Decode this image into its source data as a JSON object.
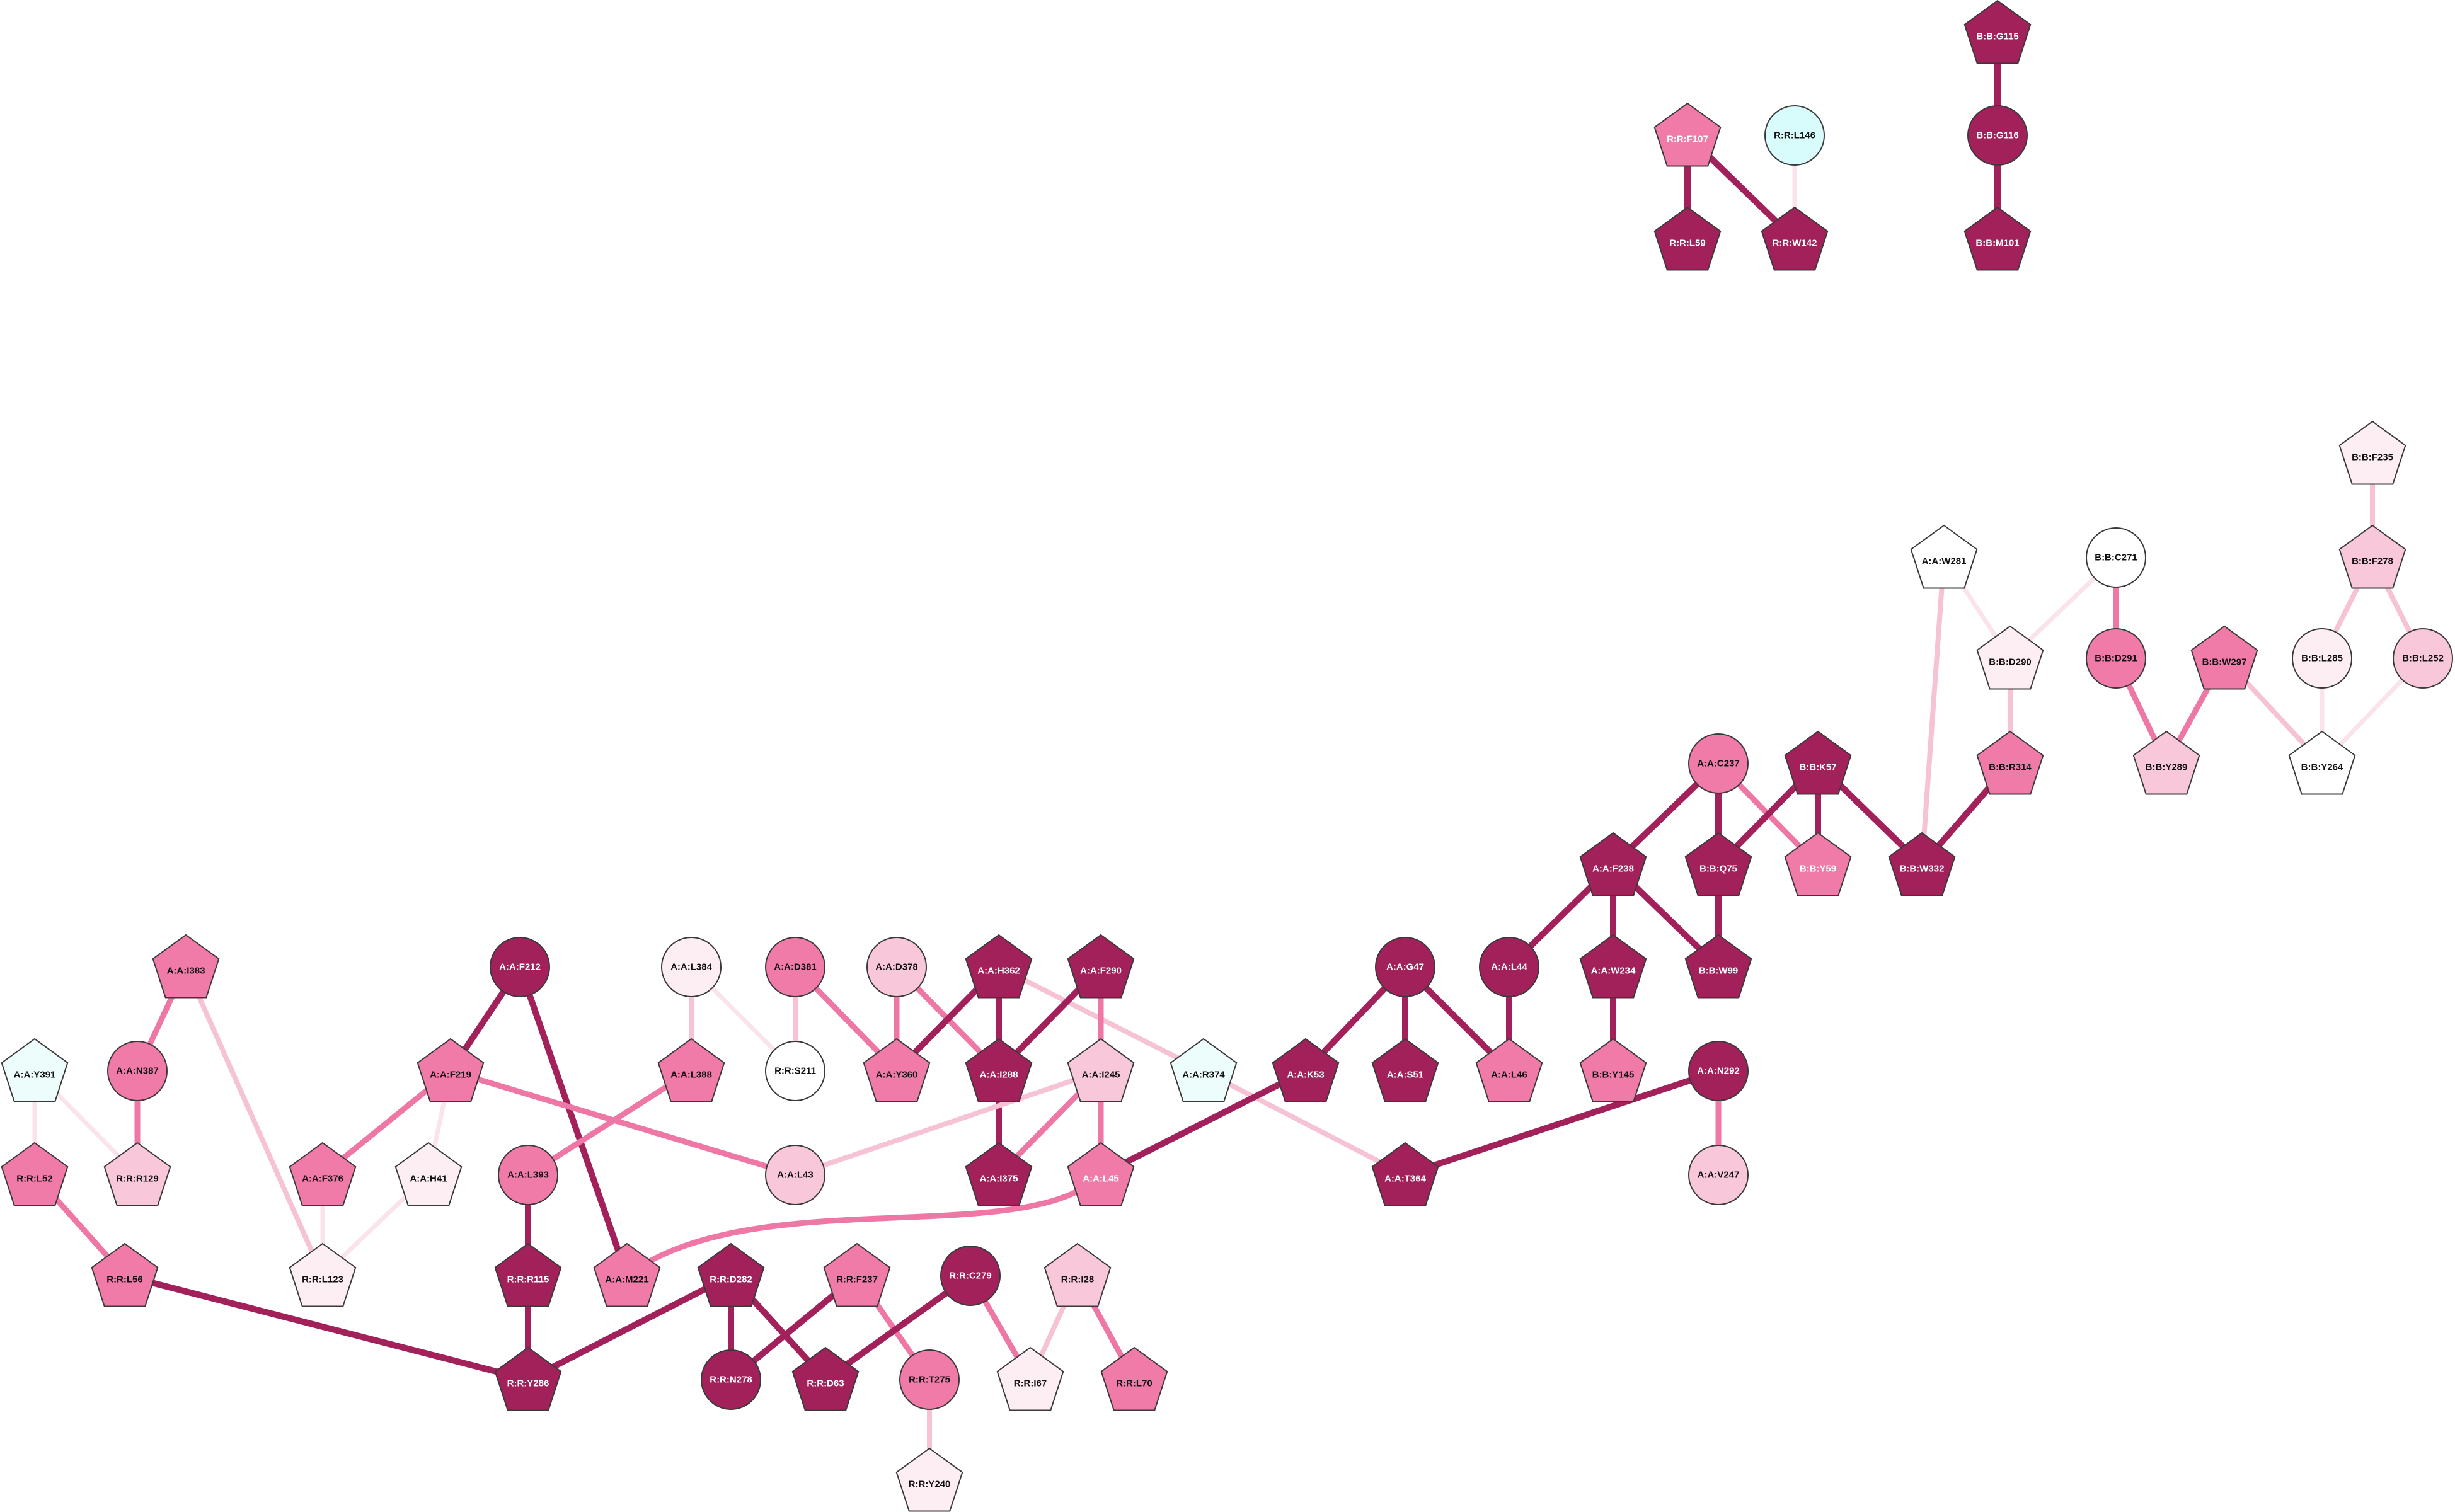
{
  "palette": {
    "dark": "#a3215a",
    "mid": "#f07aa8",
    "light": "#f8c7da",
    "faint": "#fdeef3",
    "white": "#ffffff",
    "cyan": "#d8fbfc",
    "cyan_light": "#ecfdfb"
  },
  "nodes": [
    {
      "id": "R:R:F107",
      "shape": "pentagon",
      "color": "mid",
      "text": "light"
    },
    {
      "id": "R:R:L146",
      "shape": "circle",
      "color": "cyan",
      "text": "dark"
    },
    {
      "id": "R:R:L59",
      "shape": "pentagon",
      "color": "dark",
      "text": "light"
    },
    {
      "id": "R:R:W142",
      "shape": "pentagon",
      "color": "dark",
      "text": "light"
    },
    {
      "id": "B:B:G115",
      "shape": "pentagon",
      "color": "dark",
      "text": "light"
    },
    {
      "id": "B:B:G116",
      "shape": "circle",
      "color": "dark",
      "text": "light"
    },
    {
      "id": "B:B:M101",
      "shape": "pentagon",
      "color": "dark",
      "text": "light"
    },
    {
      "id": "B:B:F235",
      "shape": "pentagon",
      "color": "faint",
      "text": "dark"
    },
    {
      "id": "B:B:F278",
      "shape": "pentagon",
      "color": "light",
      "text": "dark"
    },
    {
      "id": "A:A:W281",
      "shape": "pentagon",
      "color": "white",
      "text": "dark"
    },
    {
      "id": "B:B:C271",
      "shape": "circle",
      "color": "white",
      "text": "dark"
    },
    {
      "id": "B:B:D290",
      "shape": "pentagon",
      "color": "faint",
      "text": "dark"
    },
    {
      "id": "B:B:D291",
      "shape": "circle",
      "color": "mid",
      "text": "dark"
    },
    {
      "id": "B:B:W297",
      "shape": "pentagon",
      "color": "mid",
      "text": "dark"
    },
    {
      "id": "B:B:L285",
      "shape": "circle",
      "color": "faint",
      "text": "dark"
    },
    {
      "id": "B:B:L252",
      "shape": "circle",
      "color": "light",
      "text": "dark"
    },
    {
      "id": "B:B:Y289",
      "shape": "pentagon",
      "color": "light",
      "text": "dark"
    },
    {
      "id": "B:B:Y264",
      "shape": "pentagon",
      "color": "white",
      "text": "dark"
    },
    {
      "id": "A:A:C237",
      "shape": "circle",
      "color": "mid",
      "text": "dark"
    },
    {
      "id": "B:B:K57",
      "shape": "pentagon",
      "color": "dark",
      "text": "light"
    },
    {
      "id": "B:B:R314",
      "shape": "pentagon",
      "color": "mid",
      "text": "dark"
    },
    {
      "id": "A:A:F238",
      "shape": "pentagon",
      "color": "dark",
      "text": "light"
    },
    {
      "id": "B:B:Q75",
      "shape": "pentagon",
      "color": "dark",
      "text": "light"
    },
    {
      "id": "B:B:Y59",
      "shape": "pentagon",
      "color": "mid",
      "text": "light"
    },
    {
      "id": "B:B:W332",
      "shape": "pentagon",
      "color": "dark",
      "text": "light"
    },
    {
      "id": "A:A:L44",
      "shape": "circle",
      "color": "dark",
      "text": "light"
    },
    {
      "id": "A:A:W234",
      "shape": "pentagon",
      "color": "dark",
      "text": "light"
    },
    {
      "id": "B:B:W99",
      "shape": "pentagon",
      "color": "dark",
      "text": "light"
    },
    {
      "id": "A:A:I383",
      "shape": "pentagon",
      "color": "mid",
      "text": "dark"
    },
    {
      "id": "A:A:F212",
      "shape": "circle",
      "color": "dark",
      "text": "light"
    },
    {
      "id": "A:A:L384",
      "shape": "circle",
      "color": "faint",
      "text": "dark"
    },
    {
      "id": "A:A:D381",
      "shape": "circle",
      "color": "mid",
      "text": "dark"
    },
    {
      "id": "A:A:D378",
      "shape": "circle",
      "color": "light",
      "text": "dark"
    },
    {
      "id": "A:A:H362",
      "shape": "pentagon",
      "color": "dark",
      "text": "light"
    },
    {
      "id": "A:A:F290",
      "shape": "pentagon",
      "color": "dark",
      "text": "light"
    },
    {
      "id": "A:A:G47",
      "shape": "circle",
      "color": "dark",
      "text": "light"
    },
    {
      "id": "A:A:Y391",
      "shape": "pentagon",
      "color": "cyan_light",
      "text": "dark"
    },
    {
      "id": "A:A:N387",
      "shape": "circle",
      "color": "mid",
      "text": "dark"
    },
    {
      "id": "A:A:F219",
      "shape": "pentagon",
      "color": "mid",
      "text": "dark"
    },
    {
      "id": "A:A:L388",
      "shape": "pentagon",
      "color": "mid",
      "text": "dark"
    },
    {
      "id": "R:R:S211",
      "shape": "circle",
      "color": "white",
      "text": "dark"
    },
    {
      "id": "A:A:Y360",
      "shape": "pentagon",
      "color": "mid",
      "text": "dark"
    },
    {
      "id": "A:A:I288",
      "shape": "pentagon",
      "color": "dark",
      "text": "light"
    },
    {
      "id": "A:A:I245",
      "shape": "pentagon",
      "color": "light",
      "text": "dark"
    },
    {
      "id": "A:A:R374",
      "shape": "pentagon",
      "color": "cyan_light",
      "text": "dark"
    },
    {
      "id": "A:A:K53",
      "shape": "pentagon",
      "color": "dark",
      "text": "light"
    },
    {
      "id": "A:A:S51",
      "shape": "pentagon",
      "color": "dark",
      "text": "light"
    },
    {
      "id": "A:A:L46",
      "shape": "pentagon",
      "color": "mid",
      "text": "dark"
    },
    {
      "id": "B:B:Y145",
      "shape": "pentagon",
      "color": "mid",
      "text": "dark"
    },
    {
      "id": "A:A:N292",
      "shape": "circle",
      "color": "dark",
      "text": "light"
    },
    {
      "id": "R:R:L52",
      "shape": "pentagon",
      "color": "mid",
      "text": "dark"
    },
    {
      "id": "R:R:R129",
      "shape": "pentagon",
      "color": "light",
      "text": "dark"
    },
    {
      "id": "A:A:F376",
      "shape": "pentagon",
      "color": "mid",
      "text": "dark"
    },
    {
      "id": "A:A:H41",
      "shape": "pentagon",
      "color": "faint",
      "text": "dark"
    },
    {
      "id": "A:A:L393",
      "shape": "circle",
      "color": "mid",
      "text": "dark"
    },
    {
      "id": "A:A:L43",
      "shape": "circle",
      "color": "light",
      "text": "dark"
    },
    {
      "id": "A:A:I375",
      "shape": "pentagon",
      "color": "dark",
      "text": "light"
    },
    {
      "id": "A:A:L45",
      "shape": "pentagon",
      "color": "mid",
      "text": "light"
    },
    {
      "id": "A:A:T364",
      "shape": "pentagon",
      "color": "dark",
      "text": "light"
    },
    {
      "id": "A:A:V247",
      "shape": "circle",
      "color": "light",
      "text": "dark"
    },
    {
      "id": "R:R:L56",
      "shape": "pentagon",
      "color": "mid",
      "text": "dark"
    },
    {
      "id": "R:R:L123",
      "shape": "pentagon",
      "color": "faint",
      "text": "dark"
    },
    {
      "id": "R:R:R115",
      "shape": "pentagon",
      "color": "dark",
      "text": "light"
    },
    {
      "id": "A:A:M221",
      "shape": "pentagon",
      "color": "mid",
      "text": "dark"
    },
    {
      "id": "R:R:D282",
      "shape": "pentagon",
      "color": "dark",
      "text": "light"
    },
    {
      "id": "R:R:F237",
      "shape": "pentagon",
      "color": "mid",
      "text": "dark"
    },
    {
      "id": "R:R:C279",
      "shape": "circle",
      "color": "dark",
      "text": "light"
    },
    {
      "id": "R:R:I28",
      "shape": "pentagon",
      "color": "light",
      "text": "dark"
    },
    {
      "id": "R:R:Y286",
      "shape": "pentagon",
      "color": "dark",
      "text": "light"
    },
    {
      "id": "R:R:N278",
      "shape": "circle",
      "color": "dark",
      "text": "light"
    },
    {
      "id": "R:R:D63",
      "shape": "pentagon",
      "color": "dark",
      "text": "light"
    },
    {
      "id": "R:R:T275",
      "shape": "circle",
      "color": "mid",
      "text": "dark"
    },
    {
      "id": "R:R:I67",
      "shape": "pentagon",
      "color": "faint",
      "text": "dark"
    },
    {
      "id": "R:R:L70",
      "shape": "pentagon",
      "color": "mid",
      "text": "dark"
    },
    {
      "id": "R:R:Y240",
      "shape": "pentagon",
      "color": "faint",
      "text": "dark"
    }
  ],
  "edges": [
    {
      "source": "R:R:F107",
      "target": "R:R:L59",
      "weight": "dark"
    },
    {
      "source": "R:R:F107",
      "target": "R:R:W142",
      "weight": "dark"
    },
    {
      "source": "R:R:L146",
      "target": "R:R:W142",
      "weight": "faint"
    },
    {
      "source": "B:B:G115",
      "target": "B:B:G116",
      "weight": "dark"
    },
    {
      "source": "B:B:G116",
      "target": "B:B:M101",
      "weight": "dark"
    },
    {
      "source": "B:B:F235",
      "target": "B:B:F278",
      "weight": "light"
    },
    {
      "source": "B:B:F278",
      "target": "B:B:L285",
      "weight": "light"
    },
    {
      "source": "B:B:F278",
      "target": "B:B:L252",
      "weight": "light"
    },
    {
      "source": "A:A:W281",
      "target": "B:B:D290",
      "weight": "faint"
    },
    {
      "source": "A:A:W281",
      "target": "B:B:W332",
      "weight": "light"
    },
    {
      "source": "B:B:C271",
      "target": "B:B:D290",
      "weight": "faint"
    },
    {
      "source": "B:B:C271",
      "target": "B:B:D291",
      "weight": "mid"
    },
    {
      "source": "B:B:D290",
      "target": "B:B:R314",
      "weight": "light"
    },
    {
      "source": "B:B:D291",
      "target": "B:B:Y289",
      "weight": "mid"
    },
    {
      "source": "B:B:W297",
      "target": "B:B:Y289",
      "weight": "mid"
    },
    {
      "source": "B:B:W297",
      "target": "B:B:Y264",
      "weight": "light"
    },
    {
      "source": "B:B:L285",
      "target": "B:B:Y264",
      "weight": "faint"
    },
    {
      "source": "B:B:L252",
      "target": "B:B:Y264",
      "weight": "faint"
    },
    {
      "source": "A:A:C237",
      "target": "A:A:F238",
      "weight": "dark"
    },
    {
      "source": "A:A:C237",
      "target": "B:B:Q75",
      "weight": "dark"
    },
    {
      "source": "A:A:C237",
      "target": "B:B:Y59",
      "weight": "mid"
    },
    {
      "source": "B:B:K57",
      "target": "B:B:Q75",
      "weight": "dark"
    },
    {
      "source": "B:B:K57",
      "target": "B:B:Y59",
      "weight": "dark"
    },
    {
      "source": "B:B:K57",
      "target": "B:B:W332",
      "weight": "dark"
    },
    {
      "source": "B:B:R314",
      "target": "B:B:W332",
      "weight": "dark"
    },
    {
      "source": "A:A:F238",
      "target": "A:A:L44",
      "weight": "dark"
    },
    {
      "source": "A:A:F238",
      "target": "A:A:W234",
      "weight": "dark"
    },
    {
      "source": "A:A:F238",
      "target": "B:B:W99",
      "weight": "dark"
    },
    {
      "source": "B:B:Q75",
      "target": "B:B:W99",
      "weight": "dark"
    },
    {
      "source": "A:A:L44",
      "target": "A:A:L46",
      "weight": "dark"
    },
    {
      "source": "A:A:W234",
      "target": "B:B:Y145",
      "weight": "dark"
    },
    {
      "source": "A:A:G47",
      "target": "A:A:K53",
      "weight": "dark"
    },
    {
      "source": "A:A:G47",
      "target": "A:A:S51",
      "weight": "dark"
    },
    {
      "source": "A:A:G47",
      "target": "A:A:L46",
      "weight": "dark"
    },
    {
      "source": "A:A:I383",
      "target": "A:A:N387",
      "weight": "mid"
    },
    {
      "source": "A:A:I383",
      "target": "R:R:L123",
      "weight": "light"
    },
    {
      "source": "A:A:N387",
      "target": "R:R:R129",
      "weight": "mid"
    },
    {
      "source": "A:A:Y391",
      "target": "R:R:L52",
      "weight": "faint"
    },
    {
      "source": "A:A:Y391",
      "target": "R:R:R129",
      "weight": "faint"
    },
    {
      "source": "R:R:L52",
      "target": "R:R:L56",
      "weight": "mid"
    },
    {
      "source": "A:A:F212",
      "target": "A:A:F219",
      "weight": "dark"
    },
    {
      "source": "A:A:F212",
      "target": "A:A:M221",
      "weight": "dark"
    },
    {
      "source": "A:A:F219",
      "target": "A:A:F376",
      "weight": "mid"
    },
    {
      "source": "A:A:F219",
      "target": "A:A:H41",
      "weight": "faint"
    },
    {
      "source": "A:A:F219",
      "target": "A:A:L43",
      "weight": "mid"
    },
    {
      "source": "A:A:F376",
      "target": "R:R:L123",
      "weight": "faint"
    },
    {
      "source": "A:A:H41",
      "target": "R:R:L123",
      "weight": "faint"
    },
    {
      "source": "A:A:L384",
      "target": "A:A:L388",
      "weight": "light"
    },
    {
      "source": "A:A:L384",
      "target": "R:R:S211",
      "weight": "faint"
    },
    {
      "source": "A:A:L388",
      "target": "A:A:L393",
      "weight": "mid"
    },
    {
      "source": "A:A:D381",
      "target": "R:R:S211",
      "weight": "light"
    },
    {
      "source": "A:A:D381",
      "target": "A:A:Y360",
      "weight": "mid"
    },
    {
      "source": "A:A:D378",
      "target": "A:A:Y360",
      "weight": "mid"
    },
    {
      "source": "A:A:D378",
      "target": "A:A:I288",
      "weight": "mid"
    },
    {
      "source": "A:A:H362",
      "target": "A:A:Y360",
      "weight": "dark"
    },
    {
      "source": "A:A:H362",
      "target": "A:A:I288",
      "weight": "dark"
    },
    {
      "source": "A:A:H362",
      "target": "A:A:R374",
      "weight": "light"
    },
    {
      "source": "A:A:F290",
      "target": "A:A:I288",
      "weight": "dark"
    },
    {
      "source": "A:A:F290",
      "target": "A:A:I245",
      "weight": "mid"
    },
    {
      "source": "A:A:I288",
      "target": "A:A:I375",
      "weight": "dark"
    },
    {
      "source": "A:A:I245",
      "target": "A:A:I375",
      "weight": "mid"
    },
    {
      "source": "A:A:I245",
      "target": "A:A:L45",
      "weight": "mid"
    },
    {
      "source": "A:A:I245",
      "target": "A:A:L43",
      "weight": "light"
    },
    {
      "source": "A:A:R374",
      "target": "A:A:T364",
      "weight": "light"
    },
    {
      "source": "A:A:K53",
      "target": "A:A:L45",
      "weight": "dark"
    },
    {
      "source": "A:A:N292",
      "target": "A:A:T364",
      "weight": "dark"
    },
    {
      "source": "A:A:N292",
      "target": "A:A:V247",
      "weight": "mid"
    },
    {
      "source": "A:A:L45",
      "target": "A:A:M221",
      "weight": "mid",
      "curve": true
    },
    {
      "source": "A:A:L393",
      "target": "R:R:R115",
      "weight": "dark"
    },
    {
      "source": "R:R:R115",
      "target": "R:R:Y286",
      "weight": "dark"
    },
    {
      "source": "R:R:L56",
      "target": "R:R:Y286",
      "weight": "dark"
    },
    {
      "source": "R:R:D282",
      "target": "R:R:Y286",
      "weight": "dark"
    },
    {
      "source": "R:R:D282",
      "target": "R:R:N278",
      "weight": "dark"
    },
    {
      "source": "R:R:D282",
      "target": "R:R:D63",
      "weight": "dark"
    },
    {
      "source": "R:R:F237",
      "target": "R:R:N278",
      "weight": "dark"
    },
    {
      "source": "R:R:F237",
      "target": "R:R:T275",
      "weight": "mid"
    },
    {
      "source": "R:R:C279",
      "target": "R:R:D63",
      "weight": "dark"
    },
    {
      "source": "R:R:C279",
      "target": "R:R:I67",
      "weight": "mid"
    },
    {
      "source": "R:R:I28",
      "target": "R:R:I67",
      "weight": "light"
    },
    {
      "source": "R:R:I28",
      "target": "R:R:L70",
      "weight": "mid"
    },
    {
      "source": "R:R:T275",
      "target": "R:R:Y240",
      "weight": "light"
    }
  ]
}
